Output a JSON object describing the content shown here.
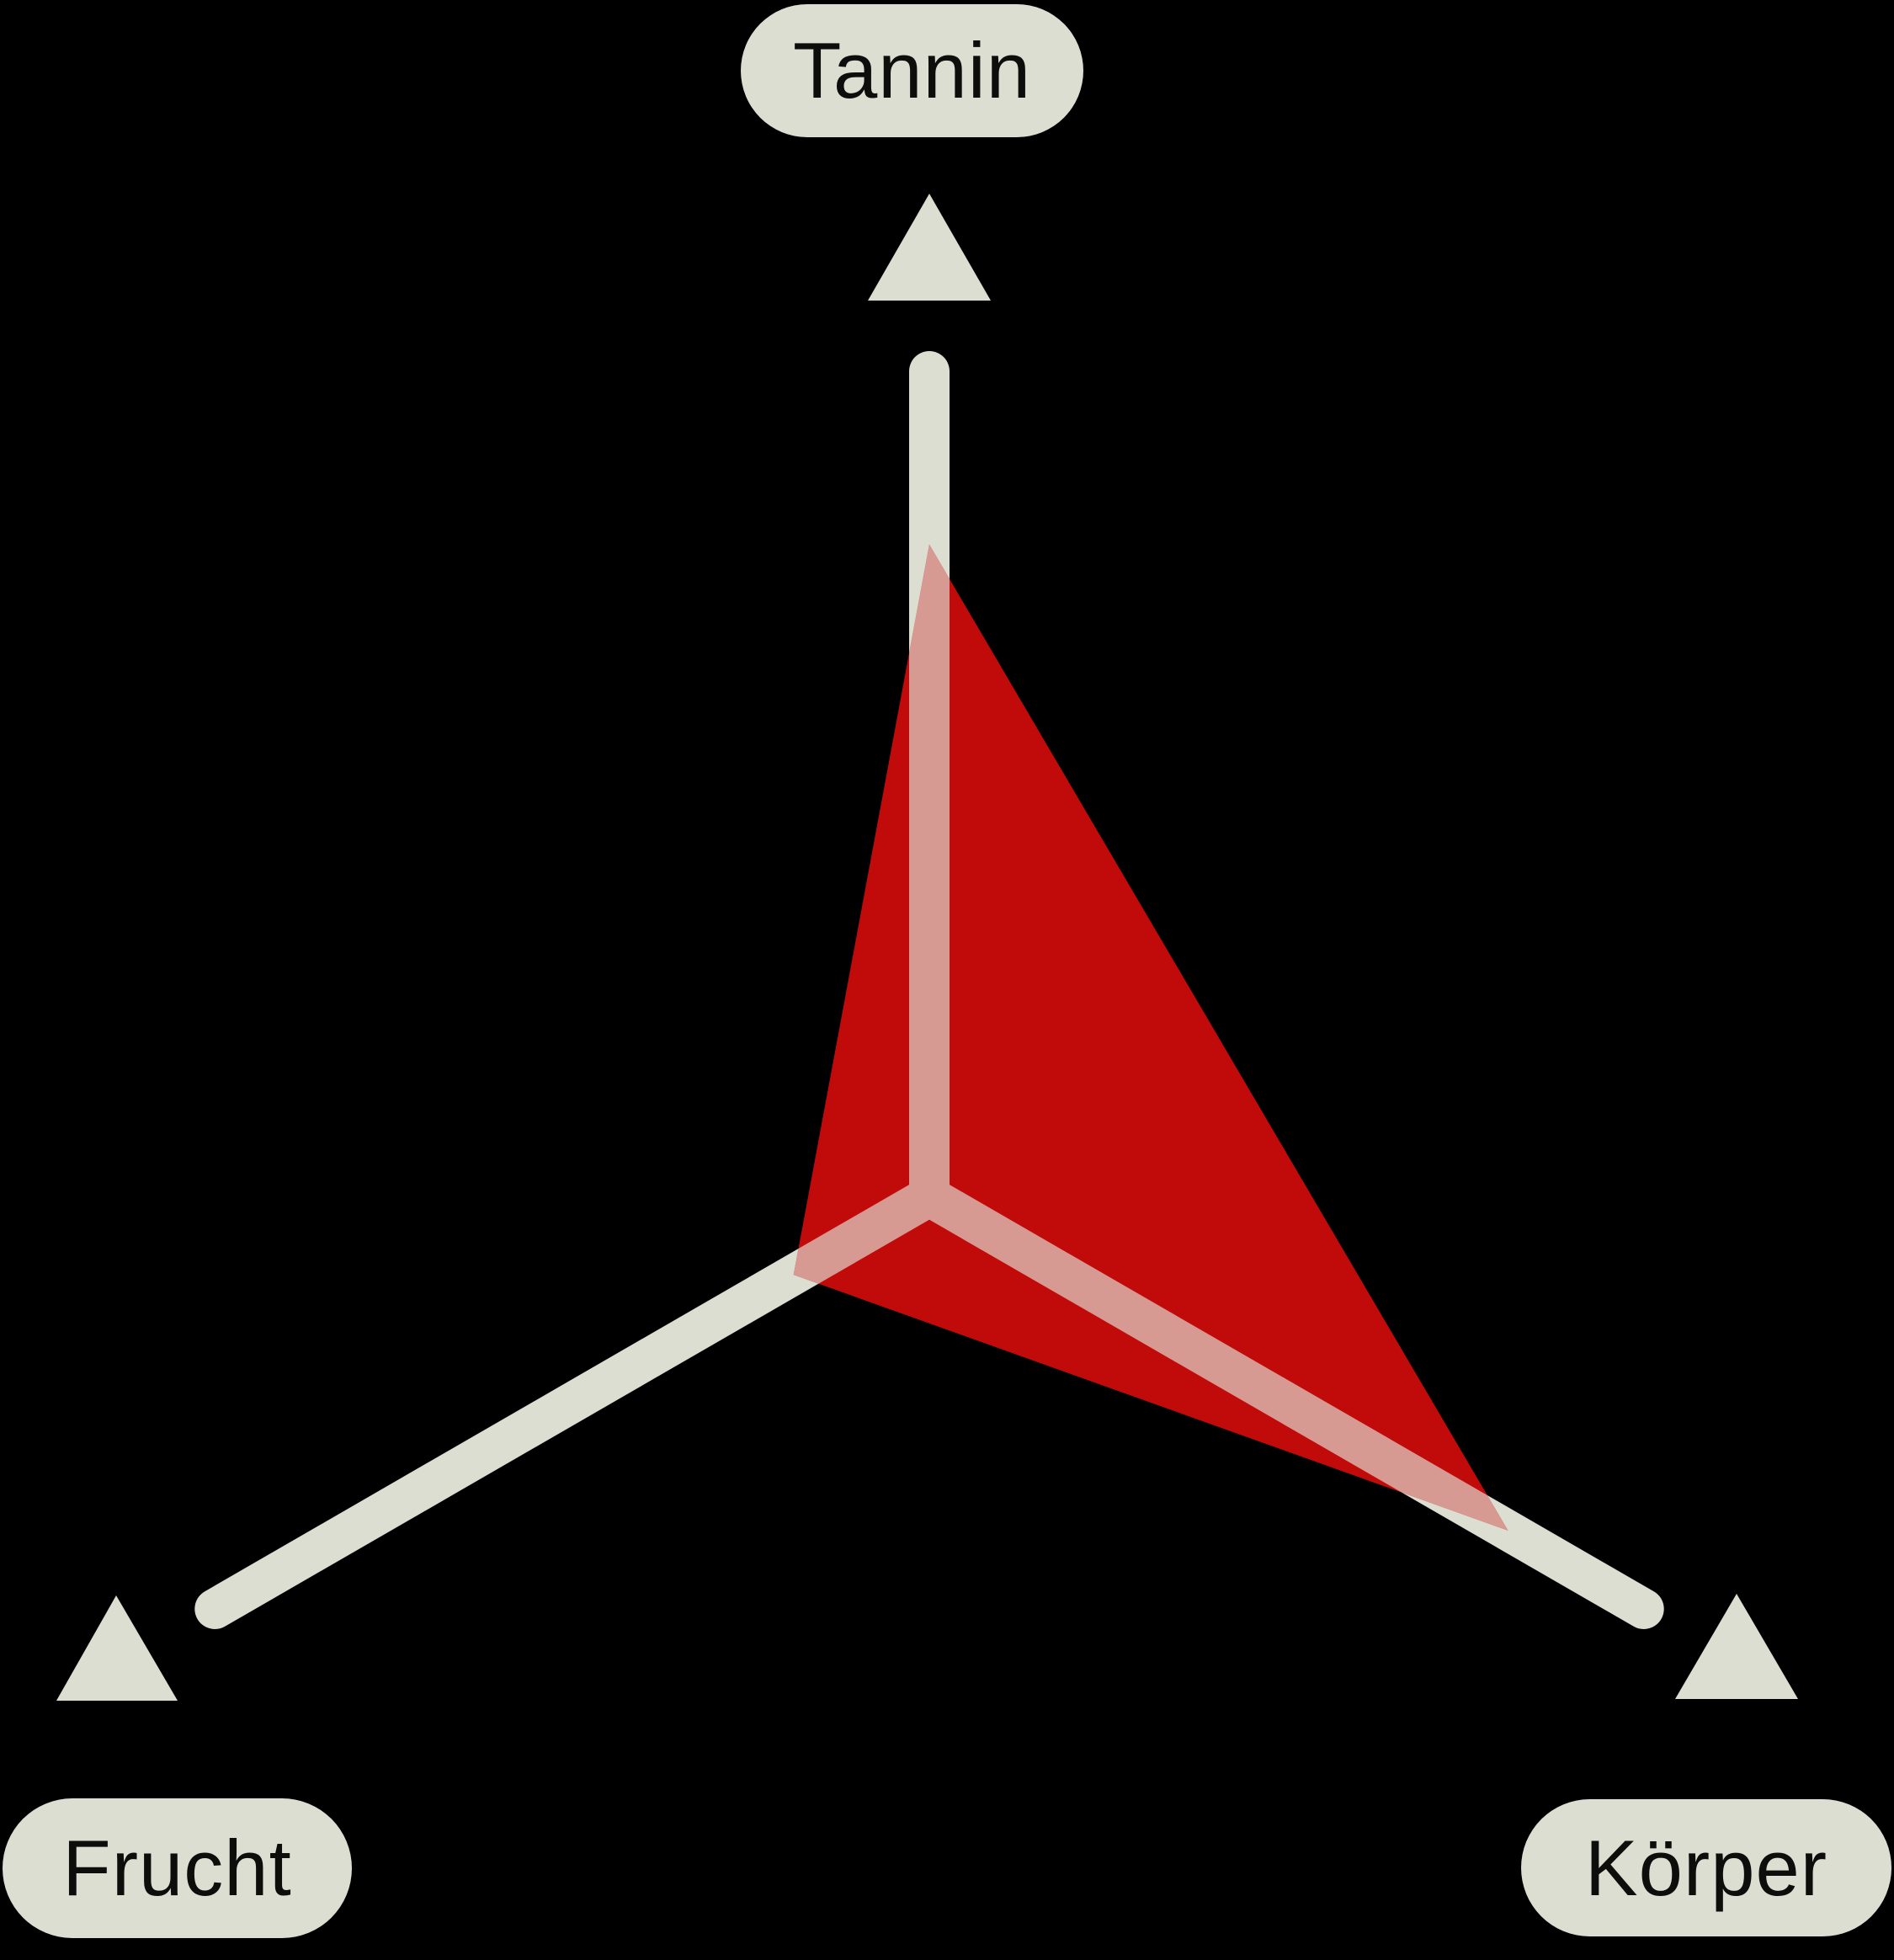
{
  "chart_data": {
    "type": "radar",
    "title": "",
    "categories": [
      "Tannin",
      "Frucht",
      "Körper"
    ],
    "values": [
      0.79,
      0.19,
      0.81
    ],
    "value_range": [
      0,
      1
    ],
    "legend": false,
    "grid": false,
    "axis_count": 3,
    "axis_arrow_direction": "up",
    "colors": {
      "background": "#000000",
      "axis": "#DBDED1",
      "fill": "#C10B0B",
      "overlay": "#D79A93",
      "label_bg": "#DBDED1",
      "label_text": "#0D0D0B"
    }
  }
}
